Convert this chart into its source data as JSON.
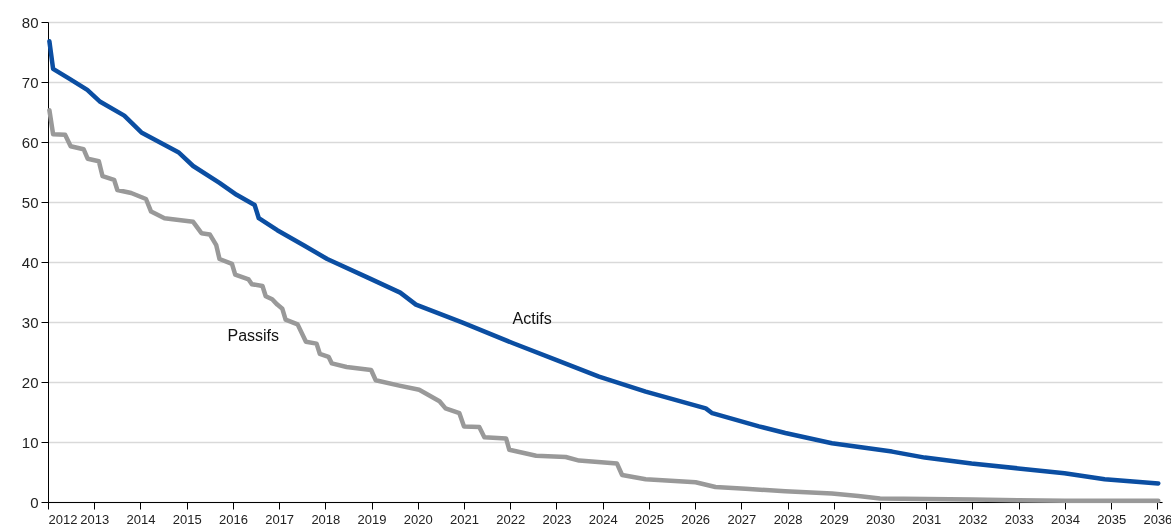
{
  "chart_data": {
    "type": "line",
    "xlim": [
      2012,
      2036.1
    ],
    "xticks": [
      2012,
      2013,
      2014,
      2015,
      2016,
      2017,
      2018,
      2019,
      2020,
      2021,
      2022,
      2023,
      2024,
      2025,
      2026,
      2027,
      2028,
      2029,
      2030,
      2031,
      2032,
      2033,
      2034,
      2035,
      2036
    ],
    "ylim": [
      0,
      80
    ],
    "yticks": [
      0,
      10,
      20,
      30,
      40,
      50,
      60,
      70,
      80
    ],
    "grid": "y",
    "legend": false,
    "line_style": "solid",
    "marker": "none",
    "series": [
      {
        "name": "Actifs",
        "color": "#0b4ea2",
        "x": [
          2012.03,
          2012.11,
          2012.45,
          2012.85,
          2013.13,
          2013.65,
          2014.02,
          2014.82,
          2015.14,
          2015.71,
          2016.08,
          2016.47,
          2016.56,
          2016.96,
          2017.53,
          2018.04,
          2018.92,
          2019.62,
          2019.96,
          2020.97,
          2022.05,
          2022.99,
          2023.92,
          2024.93,
          2026.23,
          2026.37,
          2027.38,
          2027.95,
          2028.96,
          2030.26,
          2030.97,
          2031.98,
          2032.99,
          2033.99,
          2034.86,
          2036.02
        ],
        "values": [
          76.8,
          72.2,
          70.6,
          68.7,
          66.7,
          64.4,
          61.6,
          58.3,
          56.0,
          53.2,
          51.2,
          49.5,
          47.3,
          45.3,
          42.8,
          40.5,
          37.4,
          34.9,
          32.9,
          29.9,
          26.5,
          23.7,
          20.9,
          18.4,
          15.6,
          14.8,
          12.6,
          11.5,
          9.8,
          8.4,
          7.4,
          6.4,
          5.6,
          4.8,
          3.8,
          3.1
        ]
      },
      {
        "name": "Passifs",
        "color": "#999999",
        "x": [
          2012.03,
          2012.11,
          2012.37,
          2012.49,
          2012.77,
          2012.86,
          2013.1,
          2013.18,
          2013.43,
          2013.5,
          2013.8,
          2014.12,
          2014.23,
          2014.52,
          2015.14,
          2015.32,
          2015.5,
          2015.64,
          2015.71,
          2015.98,
          2016.05,
          2016.34,
          2016.41,
          2016.64,
          2016.71,
          2016.85,
          2016.96,
          2017.07,
          2017.14,
          2017.4,
          2017.58,
          2017.81,
          2017.88,
          2018.07,
          2018.14,
          2018.46,
          2018.99,
          2019.09,
          2019.6,
          2020.03,
          2020.47,
          2020.6,
          2020.9,
          2021.0,
          2021.33,
          2021.44,
          2021.91,
          2021.98,
          2022.56,
          2023.2,
          2023.49,
          2024.31,
          2024.42,
          2024.93,
          2026.01,
          2026.44,
          2027.09,
          2027.95,
          2028.96,
          2029.53,
          2030.0,
          2031.0,
          2032.0,
          2033.0,
          2034.0,
          2036.02
        ],
        "values": [
          65.3,
          61.3,
          61.2,
          59.3,
          58.8,
          57.2,
          56.8,
          54.3,
          53.7,
          52.0,
          51.5,
          50.5,
          48.4,
          47.3,
          46.7,
          44.8,
          44.6,
          42.8,
          40.5,
          39.7,
          37.9,
          37.1,
          36.3,
          36.0,
          34.3,
          33.8,
          32.9,
          32.2,
          30.4,
          29.6,
          26.7,
          26.4,
          24.7,
          24.2,
          23.1,
          22.5,
          22.0,
          20.3,
          19.4,
          18.7,
          16.8,
          15.6,
          14.8,
          12.6,
          12.5,
          10.8,
          10.6,
          8.7,
          7.7,
          7.5,
          6.9,
          6.4,
          4.5,
          3.8,
          3.3,
          2.5,
          2.2,
          1.8,
          1.4,
          1.0,
          0.6,
          0.5,
          0.4,
          0.3,
          0.2,
          0.2
        ]
      }
    ]
  }
}
